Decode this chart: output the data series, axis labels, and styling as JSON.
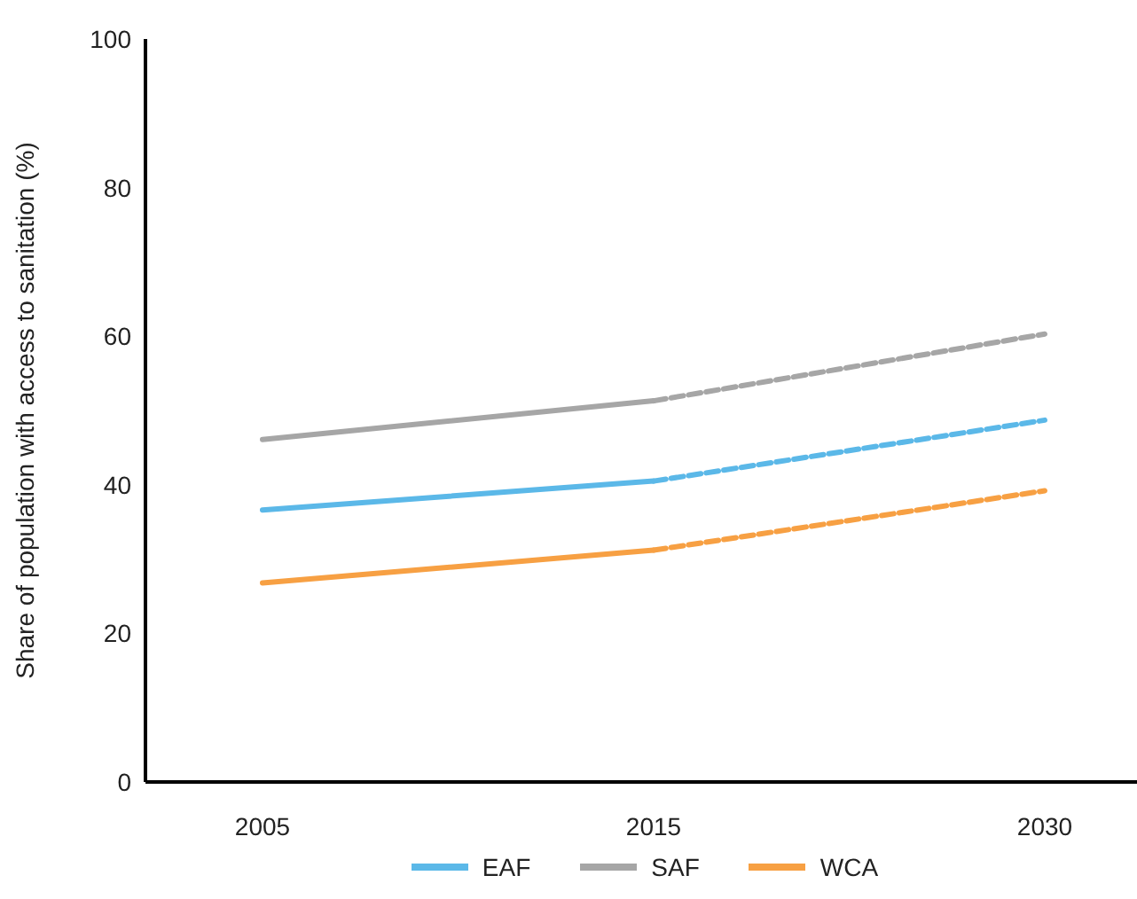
{
  "chart_data": {
    "type": "line",
    "ylabel": "Share of population with access to sanitation (%)",
    "categories": [
      "2005",
      "2015",
      "2030"
    ],
    "ylim": [
      0,
      100
    ],
    "yticks": [
      0,
      20,
      40,
      60,
      80,
      100
    ],
    "grid": false,
    "legend": "bottom",
    "marker": "none",
    "series": [
      {
        "name": "EAF",
        "color": "#5bb8e8",
        "line_style": "solid",
        "values": [
          36.6,
          40.5,
          null
        ]
      },
      {
        "name": "SAF",
        "color": "#a6a6a6",
        "line_style": "solid",
        "values": [
          46.1,
          51.3,
          null
        ]
      },
      {
        "name": "WCA",
        "color": "#f7a043",
        "line_style": "solid",
        "values": [
          26.8,
          31.2,
          null
        ]
      },
      {
        "color": "#5bb8e8",
        "line_style": "dashed",
        "values": [
          null,
          40.5,
          48.7
        ]
      },
      {
        "color": "#a6a6a6",
        "line_style": "dashed",
        "values": [
          null,
          51.3,
          60.3
        ]
      },
      {
        "color": "#f7a043",
        "line_style": "dashed",
        "values": [
          null,
          31.2,
          39.2
        ]
      }
    ]
  }
}
